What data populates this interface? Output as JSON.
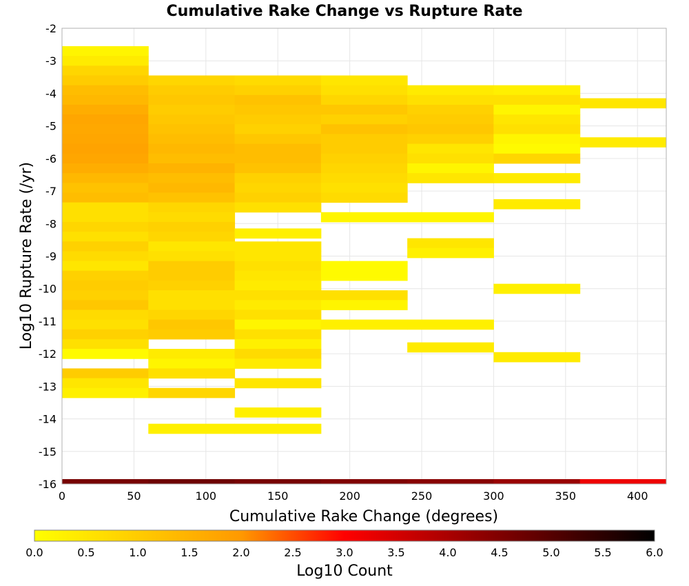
{
  "chart_data": {
    "type": "heatmap",
    "title": "Cumulative Rake Change vs Rupture Rate",
    "xlabel": "Cumulative Rake Change (degrees)",
    "ylabel": "Log10 Rupture Rate (/yr)",
    "xlim": [
      0,
      420
    ],
    "ylim": [
      -16,
      -2
    ],
    "x_ticks": [
      "0",
      "50",
      "100",
      "150",
      "200",
      "250",
      "300",
      "350",
      "400"
    ],
    "y_ticks": [
      "-2",
      "-3",
      "-4",
      "-5",
      "-6",
      "-7",
      "-8",
      "-9",
      "-10",
      "-11",
      "-12",
      "-13",
      "-14",
      "-15",
      "-16"
    ],
    "grid": true,
    "x_bin_width": 60,
    "y_bin_height": 0.3,
    "colorbar": {
      "label": "Log10 Count",
      "range": [
        0,
        6
      ],
      "ticks": [
        "0.0",
        "0.5",
        "1.0",
        "1.5",
        "2.0",
        "2.5",
        "3.0",
        "3.5",
        "4.0",
        "4.5",
        "5.0",
        "5.5",
        "6.0"
      ],
      "colors": [
        "#ffff00",
        "#ff9900",
        "#ff0000",
        "#000000"
      ]
    },
    "cells": [
      [
        0,
        -2.7,
        0.2
      ],
      [
        0,
        -3.0,
        0.4
      ],
      [
        0,
        -3.3,
        0.8
      ],
      [
        0,
        -3.6,
        1.0
      ],
      [
        0,
        -3.9,
        1.3
      ],
      [
        0,
        -4.2,
        1.4
      ],
      [
        0,
        -4.5,
        1.6
      ],
      [
        0,
        -4.8,
        1.75
      ],
      [
        0,
        -5.1,
        1.7
      ],
      [
        0,
        -5.4,
        1.75
      ],
      [
        0,
        -5.7,
        1.8
      ],
      [
        0,
        -6.0,
        1.75
      ],
      [
        0,
        -6.3,
        1.6
      ],
      [
        0,
        -6.6,
        1.4
      ],
      [
        0,
        -6.9,
        1.2
      ],
      [
        0,
        -7.2,
        1.3
      ],
      [
        0,
        -7.5,
        0.6
      ],
      [
        0,
        -7.8,
        0.6
      ],
      [
        0,
        -8.1,
        0.8
      ],
      [
        0,
        -8.4,
        0.6
      ],
      [
        0,
        -8.7,
        0.9
      ],
      [
        0,
        -9.0,
        0.7
      ],
      [
        0,
        -9.3,
        0.5
      ],
      [
        0,
        -9.6,
        0.9
      ],
      [
        0,
        -9.9,
        1.0
      ],
      [
        0,
        -10.2,
        0.9
      ],
      [
        0,
        -10.5,
        1.1
      ],
      [
        0,
        -10.8,
        0.7
      ],
      [
        0,
        -11.1,
        0.6
      ],
      [
        0,
        -11.4,
        0.9
      ],
      [
        0,
        -11.7,
        0.6
      ],
      [
        0,
        -12.0,
        0.1
      ],
      [
        0,
        -12.6,
        1.0
      ],
      [
        0,
        -12.9,
        0.5
      ],
      [
        0,
        -13.2,
        0.3
      ],
      [
        60,
        -3.6,
        0.8
      ],
      [
        60,
        -3.9,
        1.0
      ],
      [
        60,
        -4.2,
        1.1
      ],
      [
        60,
        -4.5,
        1.0
      ],
      [
        60,
        -4.8,
        1.1
      ],
      [
        60,
        -5.1,
        1.2
      ],
      [
        60,
        -5.4,
        1.3
      ],
      [
        60,
        -5.7,
        1.4
      ],
      [
        60,
        -6.0,
        1.3
      ],
      [
        60,
        -6.3,
        1.5
      ],
      [
        60,
        -6.6,
        1.3
      ],
      [
        60,
        -6.9,
        1.4
      ],
      [
        60,
        -7.2,
        1.2
      ],
      [
        60,
        -7.5,
        0.8
      ],
      [
        60,
        -7.8,
        0.7
      ],
      [
        60,
        -8.1,
        0.9
      ],
      [
        60,
        -8.4,
        0.8
      ],
      [
        60,
        -8.7,
        0.5
      ],
      [
        60,
        -9.0,
        0.6
      ],
      [
        60,
        -9.3,
        1.0
      ],
      [
        60,
        -9.6,
        1.0
      ],
      [
        60,
        -9.9,
        0.9
      ],
      [
        60,
        -10.2,
        0.6
      ],
      [
        60,
        -10.5,
        0.6
      ],
      [
        60,
        -10.8,
        0.8
      ],
      [
        60,
        -11.1,
        1.1
      ],
      [
        60,
        -11.4,
        1.0
      ],
      [
        60,
        -12.0,
        0.4
      ],
      [
        60,
        -12.3,
        0.2
      ],
      [
        60,
        -12.6,
        0.6
      ],
      [
        60,
        -13.2,
        0.8
      ],
      [
        60,
        -14.3,
        0.3
      ],
      [
        120,
        -3.6,
        0.7
      ],
      [
        120,
        -3.9,
        0.9
      ],
      [
        120,
        -4.2,
        1.2
      ],
      [
        120,
        -4.5,
        1.1
      ],
      [
        120,
        -4.8,
        1.0
      ],
      [
        120,
        -5.1,
        0.9
      ],
      [
        120,
        -5.4,
        1.1
      ],
      [
        120,
        -5.7,
        1.3
      ],
      [
        120,
        -6.0,
        1.3
      ],
      [
        120,
        -6.3,
        1.2
      ],
      [
        120,
        -6.6,
        0.9
      ],
      [
        120,
        -6.9,
        0.8
      ],
      [
        120,
        -7.2,
        0.9
      ],
      [
        120,
        -7.5,
        0.6
      ],
      [
        120,
        -8.3,
        0.3
      ],
      [
        120,
        -8.7,
        0.5
      ],
      [
        120,
        -9.0,
        0.5
      ],
      [
        120,
        -9.3,
        0.6
      ],
      [
        120,
        -9.6,
        0.5
      ],
      [
        120,
        -9.9,
        0.4
      ],
      [
        120,
        -10.2,
        0.6
      ],
      [
        120,
        -10.5,
        0.4
      ],
      [
        120,
        -10.8,
        0.6
      ],
      [
        120,
        -11.1,
        0.2
      ],
      [
        120,
        -11.4,
        0.6
      ],
      [
        120,
        -11.7,
        0.3
      ],
      [
        120,
        -12.0,
        0.7
      ],
      [
        120,
        -12.3,
        0.4
      ],
      [
        120,
        -12.9,
        0.5
      ],
      [
        120,
        -13.8,
        0.3
      ],
      [
        120,
        -14.3,
        0.3
      ],
      [
        180,
        -3.6,
        0.5
      ],
      [
        180,
        -3.9,
        0.6
      ],
      [
        180,
        -4.2,
        0.8
      ],
      [
        180,
        -4.5,
        1.1
      ],
      [
        180,
        -4.8,
        0.9
      ],
      [
        180,
        -5.1,
        1.2
      ],
      [
        180,
        -5.4,
        1.0
      ],
      [
        180,
        -5.7,
        1.0
      ],
      [
        180,
        -6.0,
        0.9
      ],
      [
        180,
        -6.3,
        0.8
      ],
      [
        180,
        -6.6,
        0.7
      ],
      [
        180,
        -6.9,
        0.6
      ],
      [
        180,
        -7.2,
        0.7
      ],
      [
        180,
        -7.8,
        0.2
      ],
      [
        180,
        -9.3,
        0.1
      ],
      [
        180,
        -9.6,
        0.1
      ],
      [
        180,
        -10.2,
        0.6
      ],
      [
        180,
        -10.5,
        0.2
      ],
      [
        180,
        -11.1,
        0.3
      ],
      [
        240,
        -3.9,
        0.4
      ],
      [
        240,
        -4.2,
        0.6
      ],
      [
        240,
        -4.5,
        0.9
      ],
      [
        240,
        -4.8,
        1.0
      ],
      [
        240,
        -5.1,
        1.1
      ],
      [
        240,
        -5.4,
        0.9
      ],
      [
        240,
        -5.7,
        0.5
      ],
      [
        240,
        -6.0,
        0.6
      ],
      [
        240,
        -6.3,
        0.2
      ],
      [
        240,
        -6.6,
        0.5
      ],
      [
        240,
        -7.8,
        0.2
      ],
      [
        240,
        -8.6,
        0.5
      ],
      [
        240,
        -8.9,
        0.3
      ],
      [
        240,
        -11.1,
        0.3
      ],
      [
        240,
        -11.8,
        0.4
      ],
      [
        300,
        -3.9,
        0.3
      ],
      [
        300,
        -4.2,
        0.6
      ],
      [
        300,
        -4.5,
        0.2
      ],
      [
        300,
        -4.8,
        0.5
      ],
      [
        300,
        -5.1,
        0.6
      ],
      [
        300,
        -5.4,
        0.2
      ],
      [
        300,
        -5.7,
        0.1
      ],
      [
        300,
        -6.0,
        0.8
      ],
      [
        300,
        -6.6,
        0.4
      ],
      [
        300,
        -7.4,
        0.4
      ],
      [
        300,
        -10.0,
        0.3
      ],
      [
        300,
        -12.1,
        0.4
      ],
      [
        360,
        -4.3,
        0.5
      ],
      [
        360,
        -5.5,
        0.4
      ]
    ],
    "bottom_row": {
      "y": -16,
      "values": [
        [
          0,
          4.6
        ],
        [
          60,
          4.7
        ],
        [
          120,
          4.6
        ],
        [
          180,
          4.5
        ],
        [
          240,
          4.4
        ],
        [
          300,
          4.2
        ],
        [
          360,
          3.2
        ]
      ]
    }
  }
}
